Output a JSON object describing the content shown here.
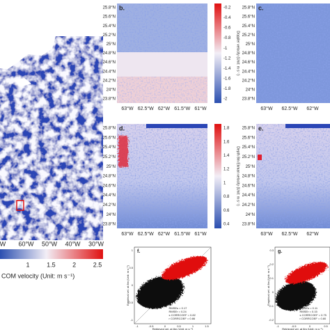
{
  "panel_a": {
    "xticks": [
      "W",
      "60°W",
      "50°W",
      "40°W",
      "30°W"
    ],
    "colorbar": {
      "ticks": [
        "1",
        "1.5",
        "2",
        "2.5"
      ],
      "label": "COM velocity (Unit: m s⁻¹)"
    }
  },
  "panel_b": {
    "label": "b.",
    "yticks": [
      "25.8°N",
      "25.6°N",
      "25.4°N",
      "25.2°N",
      "25°N",
      "24.8°N",
      "24.6°N",
      "24.4°N",
      "24.2°N",
      "24°N",
      "23.8°N"
    ],
    "xticks": [
      "63°W",
      "62.5°W",
      "62°W",
      "61.5°W",
      "61°W"
    ],
    "colorbar": {
      "ticks": [
        "-0.2",
        "-0.4",
        "-0.6",
        "-0.8",
        "-1",
        "-1.2",
        "-1.4",
        "-1.6",
        "-1.8",
        "-2"
      ],
      "label": "Doppler velocity (Unit: m s⁻¹)"
    }
  },
  "panel_c": {
    "label": "c.",
    "yticks": [
      "25.8°N",
      "25.6°N",
      "25.4°N",
      "25.2°N",
      "25°N",
      "24.8°N",
      "24.6°N",
      "24.4°N",
      "24.2°N",
      "24°N",
      "23.8°N"
    ],
    "xticks": [
      "63°W",
      "62.5°W",
      "62°W"
    ]
  },
  "panel_d": {
    "label": "d.",
    "yticks": [
      "25.8°N",
      "25.6°N",
      "25.4°N",
      "25.2°N",
      "25°N",
      "24.8°N",
      "24.6°N",
      "24.4°N",
      "24.2°N",
      "24°N",
      "23.8°N"
    ],
    "xticks": [
      "63°W",
      "62.5°W",
      "62°W",
      "61.5°W",
      "61°W"
    ],
    "colorbar": {
      "ticks": [
        "1.8",
        "1.6",
        "1.4",
        "1.2",
        "1",
        "0.8",
        "0.6",
        "0.4"
      ],
      "label": "Depth 8m Ekman velocity (Unit: m s⁻¹)"
    }
  },
  "panel_e": {
    "label": "e.",
    "yticks": [
      "25.8°N",
      "25.6°N",
      "25.4°N",
      "25.2°N",
      "25°N",
      "24.8°N",
      "24.6°N",
      "24.4°N",
      "24.2°N",
      "24°N",
      "23.8°N"
    ],
    "xticks": [
      "63°W",
      "62.5°W",
      "62°W"
    ]
  },
  "panel_f": {
    "label": "f.",
    "xlabel": "Retrieved vel. at 8m (Unit: m s⁻¹)",
    "ylabel": "Empirical vel. at 8m (Unit: m s⁻¹)",
    "xticks": [
      "-1",
      "-0.5",
      "0",
      "0.5",
      "1",
      "1.5"
    ],
    "yticks": [
      "1",
      "0.5",
      "0",
      "-0.5",
      "-1"
    ],
    "legend": [
      "RMSEs = 0.17",
      "RMSEr = 0.24",
      "s CORRCOEF = 0.82",
      "r CORRCOEF = 0.86"
    ]
  },
  "panel_g": {
    "label": "g.",
    "xlabel": "Retrieved vel. at 8m (Unit: m s⁻¹)",
    "ylabel": "Empirical vel. at 8m (Unit: m s⁻¹)",
    "xticks": [
      "-1",
      "-0.5",
      "0",
      "0.5"
    ],
    "yticks": [
      "0.3",
      "0.2",
      "0.1",
      "0",
      "-0.1",
      "-0.2"
    ],
    "legend": [
      "RMSEs = 0.11",
      "RMSEr = 0.15",
      "s CORRCOEF = 0.75",
      "r CORRCOEF = 0.80"
    ]
  }
}
